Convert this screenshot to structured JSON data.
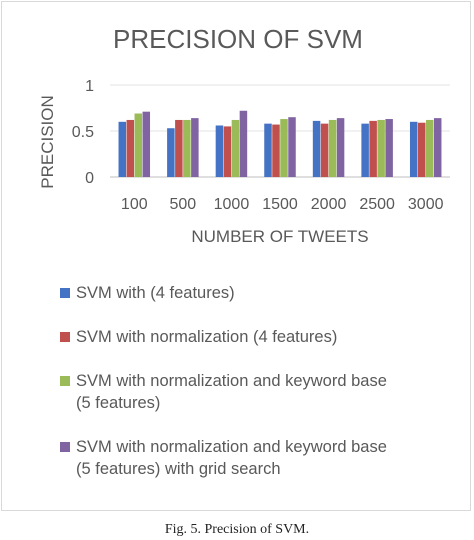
{
  "chart_data": {
    "type": "bar",
    "title": "PRECISION OF SVM",
    "xlabel": "NUMBER OF TWEETS",
    "ylabel": "PRECISION",
    "ylim": [
      0,
      1
    ],
    "yticks": [
      "0",
      "0.5",
      "1"
    ],
    "grid": true,
    "legend_position": "bottom",
    "categories": [
      "100",
      "500",
      "1000",
      "1500",
      "2000",
      "2500",
      "3000"
    ],
    "series": [
      {
        "name": "SVM with (4 features)",
        "color": "#4472C4",
        "values": [
          0.6,
          0.53,
          0.56,
          0.58,
          0.61,
          0.58,
          0.6
        ]
      },
      {
        "name": "SVM with  normalization (4 features)",
        "color": "#C0504D",
        "values": [
          0.62,
          0.62,
          0.55,
          0.57,
          0.58,
          0.61,
          0.59
        ]
      },
      {
        "name": "SVM with normalization and keyword base (5 features)",
        "color": "#9BBB59",
        "values": [
          0.69,
          0.62,
          0.62,
          0.63,
          0.62,
          0.62,
          0.62
        ]
      },
      {
        "name": "SVM with normalization and keyword base (5 features) with grid search",
        "color": "#8064A2",
        "values": [
          0.71,
          0.64,
          0.72,
          0.65,
          0.64,
          0.63,
          0.64
        ]
      }
    ],
    "legend_lines": [
      [
        "SVM with (4 features)"
      ],
      [
        "SVM with  normalization (4 features)"
      ],
      [
        "SVM with normalization and keyword base",
        "(5 features)"
      ],
      [
        "SVM with normalization and keyword base",
        "(5 features) with grid search"
      ]
    ]
  },
  "caption": "Fig. 5.    Precision of SVM."
}
